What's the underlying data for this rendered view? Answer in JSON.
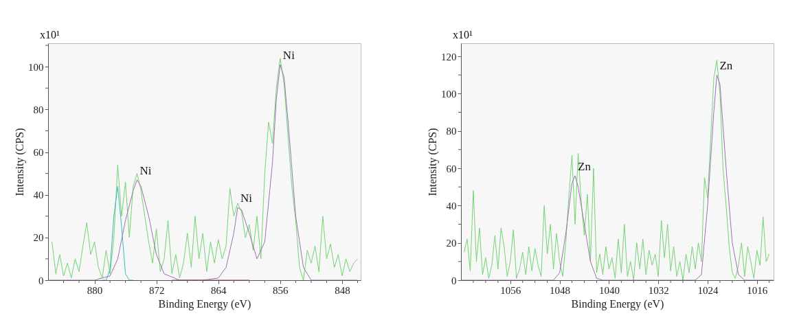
{
  "chart_data": [
    {
      "type": "line",
      "xlabel": "Binding Energy (eV)",
      "ylabel": "Intensity (CPS)",
      "xlim": [
        886,
        845.6
      ],
      "ylim": [
        0,
        111
      ],
      "xticks": [
        {
          "value": 884,
          "label": null
        },
        {
          "value": 882,
          "label": null
        },
        880,
        {
          "value": 878,
          "label": null
        },
        {
          "value": 876,
          "label": null
        },
        {
          "value": 874,
          "label": null
        },
        872,
        {
          "value": 870,
          "label": null
        },
        {
          "value": 868,
          "label": null
        },
        {
          "value": 866,
          "label": null
        },
        864,
        {
          "value": 862,
          "label": null
        },
        {
          "value": 860,
          "label": null
        },
        {
          "value": 858,
          "label": null
        },
        856,
        {
          "value": 854,
          "label": null
        },
        {
          "value": 852,
          "label": null
        },
        {
          "value": 850,
          "label": null
        },
        848,
        {
          "value": 846,
          "label": null
        }
      ],
      "yticks": [
        0,
        {
          "value": 10,
          "label": null
        },
        20,
        {
          "value": 30,
          "label": null
        },
        40,
        {
          "value": 50,
          "label": null
        },
        60,
        {
          "value": 70,
          "label": null
        },
        80,
        {
          "value": 90,
          "label": null
        },
        100,
        {
          "value": 110,
          "label": null
        }
      ],
      "x": [
        885.5,
        885,
        884.5,
        884,
        883.5,
        883,
        882.5,
        882,
        881.5,
        881,
        880.5,
        880,
        879.5,
        879,
        878.5,
        878,
        877.5,
        877,
        876.5,
        876,
        875.5,
        875,
        874.5,
        874,
        873.5,
        873,
        872.5,
        872,
        871.5,
        871,
        870.5,
        870,
        869.5,
        869,
        868.5,
        868,
        867.5,
        867,
        866.5,
        866,
        865.5,
        865,
        864.5,
        864,
        863.5,
        863,
        862.5,
        862,
        861.5,
        861,
        860.5,
        860,
        859.5,
        859,
        858.5,
        858,
        857.5,
        857,
        856.5,
        856,
        855.5,
        855,
        854.5,
        854,
        853.5,
        853,
        852.5,
        852,
        851.5,
        851,
        850.5,
        850,
        849.5,
        849,
        848.5,
        848,
        847.5,
        847,
        846.5,
        846
      ],
      "series": [
        {
          "color": "#72d472",
          "values": [
            18,
            3,
            12,
            2,
            8,
            1,
            10,
            4,
            16,
            27,
            12,
            18,
            6,
            1,
            14,
            3,
            20,
            54,
            30,
            46,
            20,
            44,
            50,
            42,
            30,
            18,
            8,
            24,
            4,
            10,
            28,
            3,
            12,
            1,
            8,
            22,
            6,
            30,
            10,
            22,
            4,
            18,
            8,
            19,
            10,
            16,
            43,
            30,
            36,
            32,
            20,
            26,
            14,
            30,
            10,
            50,
            74,
            64,
            90,
            104,
            92,
            68,
            44,
            28,
            6,
            0,
            14,
            8,
            16,
            4,
            30,
            10,
            17,
            6,
            12,
            2,
            10,
            4,
            8,
            10
          ]
        },
        {
          "color": "#a070b0",
          "x": [
            886,
            880,
            878,
            877,
            876,
            875,
            874.5,
            874,
            873,
            872,
            871,
            869,
            866,
            864,
            863,
            862,
            861.5,
            861,
            860,
            859,
            858,
            857,
            856.5,
            856,
            855.5,
            855,
            854,
            853,
            852,
            846
          ],
          "values": [
            0,
            0,
            2,
            10,
            28,
            42,
            47,
            44,
            30,
            12,
            3,
            0,
            0,
            1,
            6,
            22,
            34,
            33,
            22,
            10,
            18,
            55,
            85,
            101,
            95,
            75,
            30,
            6,
            0,
            0
          ]
        },
        {
          "color": "#40b8c0",
          "x": [
            879,
            878.5,
            878,
            877.5,
            877,
            876.5,
            876,
            875.5,
            875
          ],
          "values": [
            0,
            0,
            5,
            30,
            44,
            25,
            3,
            0,
            0
          ]
        },
        {
          "color": "#b03060",
          "x": [
            870,
            860
          ],
          "values": [
            0,
            0
          ]
        }
      ],
      "annotations": [
        "x10¹",
        {
          "text": "Ni",
          "x": 856,
          "y": 101
        },
        {
          "text": "Ni",
          "x": 874.5,
          "y": 47
        },
        {
          "text": "Ni",
          "x": 861.5,
          "y": 34
        }
      ]
    },
    {
      "type": "line",
      "xlabel": "Binding Energy (eV)",
      "ylabel": "Intensity (CPS)",
      "xlim": [
        1064,
        1013.3
      ],
      "ylim": [
        0,
        127
      ],
      "xticks": [
        {
          "value": 1062,
          "label": null
        },
        {
          "value": 1060,
          "label": null
        },
        {
          "value": 1058,
          "label": null
        },
        1056,
        {
          "value": 1054,
          "label": null
        },
        {
          "value": 1052,
          "label": null
        },
        {
          "value": 1050,
          "label": null
        },
        1048,
        {
          "value": 1046,
          "label": null
        },
        {
          "value": 1044,
          "label": null
        },
        {
          "value": 1042,
          "label": null
        },
        1040,
        {
          "value": 1038,
          "label": null
        },
        {
          "value": 1036,
          "label": null
        },
        {
          "value": 1034,
          "label": null
        },
        1032,
        {
          "value": 1030,
          "label": null
        },
        {
          "value": 1028,
          "label": null
        },
        {
          "value": 1026,
          "label": null
        },
        1024,
        {
          "value": 1022,
          "label": null
        },
        {
          "value": 1020,
          "label": null
        },
        {
          "value": 1018,
          "label": null
        },
        1016,
        {
          "value": 1014,
          "label": null
        }
      ],
      "yticks": [
        0,
        {
          "value": 10,
          "label": null
        },
        20,
        {
          "value": 30,
          "label": null
        },
        40,
        {
          "value": 50,
          "label": null
        },
        60,
        {
          "value": 70,
          "label": null
        },
        80,
        {
          "value": 90,
          "label": null
        },
        100,
        {
          "value": 110,
          "label": null
        },
        120
      ],
      "x": [
        1063.5,
        1063,
        1062.5,
        1062,
        1061.5,
        1061,
        1060.5,
        1060,
        1059.5,
        1059,
        1058.5,
        1058,
        1057.5,
        1057,
        1056.5,
        1056,
        1055.5,
        1055,
        1054.5,
        1054,
        1053.5,
        1053,
        1052.5,
        1052,
        1051.5,
        1051,
        1050.5,
        1050,
        1049.5,
        1049,
        1048.5,
        1048,
        1047.5,
        1047,
        1046.5,
        1046,
        1045.5,
        1045,
        1044.5,
        1044,
        1043.5,
        1043,
        1042.5,
        1042,
        1041.5,
        1041,
        1040.5,
        1040,
        1039.5,
        1039,
        1038.5,
        1038,
        1037.5,
        1037,
        1036.5,
        1036,
        1035.5,
        1035,
        1034.5,
        1034,
        1033.5,
        1033,
        1032.5,
        1032,
        1031.5,
        1031,
        1030.5,
        1030,
        1029.5,
        1029,
        1028.5,
        1028,
        1027.5,
        1027,
        1026.5,
        1026,
        1025.5,
        1025,
        1024.5,
        1024,
        1023.5,
        1023,
        1022.5,
        1022,
        1021.5,
        1021,
        1020.5,
        1020,
        1019.5,
        1019,
        1018.5,
        1018,
        1017.5,
        1017,
        1016.5,
        1016,
        1015.5,
        1015,
        1014.5,
        1014
      ],
      "series": [
        {
          "color": "#72d472",
          "values": [
            15,
            22,
            5,
            48,
            10,
            28,
            3,
            12,
            1,
            8,
            24,
            6,
            28,
            18,
            2,
            10,
            27,
            1,
            6,
            15,
            3,
            18,
            5,
            17,
            8,
            2,
            40,
            14,
            30,
            6,
            25,
            10,
            2,
            20,
            45,
            67,
            30,
            68,
            42,
            24,
            46,
            10,
            60,
            4,
            14,
            3,
            18,
            6,
            12,
            1,
            22,
            4,
            30,
            2,
            10,
            0,
            20,
            6,
            22,
            3,
            16,
            8,
            14,
            2,
            32,
            12,
            30,
            5,
            18,
            2,
            10,
            0,
            14,
            4,
            18,
            6,
            20,
            10,
            55,
            44,
            76,
            108,
            118,
            100,
            60,
            40,
            18,
            4,
            1,
            8,
            20,
            2,
            18,
            10,
            1,
            16,
            8,
            34,
            10,
            14
          ]
        },
        {
          "color": "#a070b0",
          "x": [
            1064,
            1049,
            1048,
            1047,
            1046,
            1045.5,
            1045,
            1044,
            1043,
            1042,
            1041,
            1026,
            1025,
            1024,
            1023,
            1022.5,
            1022,
            1021,
            1020,
            1019,
            1018,
            1013.3
          ],
          "values": [
            0,
            0,
            4,
            25,
            52,
            56,
            50,
            30,
            10,
            1,
            0,
            0,
            3,
            40,
            90,
            110,
            105,
            60,
            20,
            3,
            0,
            0
          ]
        }
      ],
      "annotations": [
        "x10¹",
        {
          "text": "Zn",
          "x": 1022.5,
          "y": 110
        },
        {
          "text": "Zn",
          "x": 1045.5,
          "y": 56
        }
      ]
    }
  ]
}
